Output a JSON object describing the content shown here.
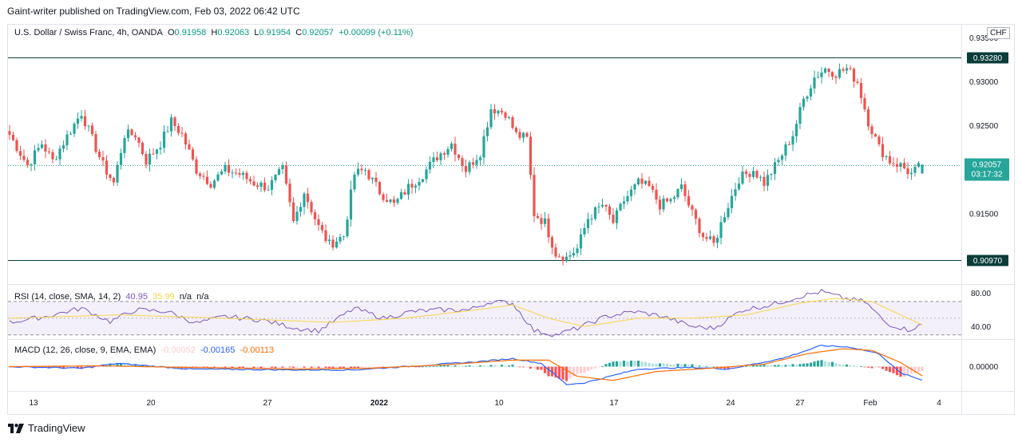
{
  "header": {
    "publisher": "Gaint-writer published on TradingView.com, Feb 03, 2022 06:42 UTC"
  },
  "legend": {
    "symbol": "U.S. Dollar / Swiss Franc, 4h, OANDA",
    "o_label": "O",
    "o": "0.91958",
    "h_label": "H",
    "h": "0.92063",
    "l_label": "L",
    "l": "0.91954",
    "c_label": "C",
    "c": "0.92057",
    "change": "+0.00099 (+0.11%)"
  },
  "currency_badge": "CHF",
  "brand": "TradingView",
  "colors": {
    "up": "#26a69a",
    "down": "#ef5350",
    "level_line": "#0b3d3a",
    "rsi": "#7e57c2",
    "rsi_ma": "#f9d54b",
    "macd": "#2962ff",
    "signal": "#ff6d00",
    "hist_up_strong": "#26a69a",
    "hist_up_weak": "#b2dfdb",
    "hist_dn_strong": "#ff5252",
    "hist_dn_weak": "#ffcdd2"
  },
  "chart_data": [
    {
      "type": "candlestick",
      "title": "U.S. Dollar / Swiss Franc, 4h, OANDA",
      "x_ticks": [
        "13",
        "20",
        "27",
        "2022",
        "10",
        "17",
        "24",
        "27",
        "Feb",
        "4"
      ],
      "y_ticks": [
        "0.93500",
        "0.93000",
        "0.92500",
        "0.91500"
      ],
      "ylim": [
        0.907,
        0.9365
      ],
      "levels": [
        {
          "value": 0.9328,
          "label": "0.93280"
        },
        {
          "value": 0.9097,
          "label": "0.90970"
        }
      ],
      "last_price": {
        "value": 0.92057,
        "label": "0.92057",
        "countdown": "03:17:32"
      },
      "waypoints": [
        [
          0,
          0.924
        ],
        [
          5,
          0.9205
        ],
        [
          9,
          0.923
        ],
        [
          12,
          0.921
        ],
        [
          17,
          0.9245
        ],
        [
          20,
          0.9265
        ],
        [
          23,
          0.9235
        ],
        [
          26,
          0.9205
        ],
        [
          29,
          0.9185
        ],
        [
          32,
          0.924
        ],
        [
          35,
          0.924
        ],
        [
          38,
          0.921
        ],
        [
          42,
          0.923
        ],
        [
          45,
          0.9255
        ],
        [
          48,
          0.924
        ],
        [
          52,
          0.92
        ],
        [
          56,
          0.9185
        ],
        [
          60,
          0.92
        ],
        [
          64,
          0.9195
        ],
        [
          68,
          0.9185
        ],
        [
          72,
          0.918
        ],
        [
          76,
          0.92
        ],
        [
          79,
          0.914
        ],
        [
          82,
          0.9175
        ],
        [
          86,
          0.9135
        ],
        [
          89,
          0.9115
        ],
        [
          93,
          0.9125
        ],
        [
          96,
          0.9195
        ],
        [
          99,
          0.92
        ],
        [
          103,
          0.9175
        ],
        [
          107,
          0.916
        ],
        [
          111,
          0.918
        ],
        [
          115,
          0.9195
        ],
        [
          119,
          0.9215
        ],
        [
          123,
          0.923
        ],
        [
          127,
          0.92
        ],
        [
          131,
          0.922
        ],
        [
          134,
          0.927
        ],
        [
          138,
          0.9265
        ],
        [
          141,
          0.924
        ],
        [
          144,
          0.9235
        ],
        [
          146,
          0.915
        ],
        [
          149,
          0.914
        ],
        [
          152,
          0.9105
        ],
        [
          155,
          0.91
        ],
        [
          158,
          0.911
        ],
        [
          161,
          0.9145
        ],
        [
          165,
          0.916
        ],
        [
          168,
          0.914
        ],
        [
          171,
          0.9165
        ],
        [
          175,
          0.9185
        ],
        [
          178,
          0.918
        ],
        [
          181,
          0.916
        ],
        [
          184,
          0.9165
        ],
        [
          187,
          0.918
        ],
        [
          190,
          0.915
        ],
        [
          193,
          0.9125
        ],
        [
          196,
          0.9115
        ],
        [
          199,
          0.915
        ],
        [
          203,
          0.919
        ],
        [
          207,
          0.92
        ],
        [
          210,
          0.9185
        ],
        [
          214,
          0.921
        ],
        [
          218,
          0.924
        ],
        [
          221,
          0.928
        ],
        [
          224,
          0.9305
        ],
        [
          227,
          0.9315
        ],
        [
          230,
          0.931
        ],
        [
          233,
          0.9315
        ],
        [
          236,
          0.93
        ],
        [
          239,
          0.9255
        ],
        [
          242,
          0.9225
        ],
        [
          245,
          0.921
        ],
        [
          248,
          0.9205
        ],
        [
          251,
          0.9195
        ],
        [
          254,
          0.9206
        ]
      ],
      "last_candle": {
        "o": 0.91958,
        "h": 0.92063,
        "l": 0.91954,
        "c": 0.92057
      }
    },
    {
      "type": "line",
      "title": "RSI (14, close, SMA, 14, 2)",
      "values_shown": [
        "40.95",
        "35.99",
        "n/a",
        "n/a"
      ],
      "y_ticks": [
        "80.00",
        "40.00"
      ],
      "ylim": [
        25,
        90
      ],
      "bands": [
        30,
        50,
        70
      ],
      "series": [
        {
          "name": "RSI",
          "waypoints": [
            [
              0,
              45
            ],
            [
              10,
              52
            ],
            [
              20,
              62
            ],
            [
              28,
              46
            ],
            [
              35,
              60
            ],
            [
              44,
              58
            ],
            [
              52,
              44
            ],
            [
              60,
              52
            ],
            [
              70,
              48
            ],
            [
              80,
              38
            ],
            [
              86,
              35
            ],
            [
              96,
              62
            ],
            [
              104,
              50
            ],
            [
              112,
              58
            ],
            [
              120,
              60
            ],
            [
              128,
              60
            ],
            [
              134,
              70
            ],
            [
              140,
              68
            ],
            [
              146,
              35
            ],
            [
              152,
              30
            ],
            [
              158,
              38
            ],
            [
              166,
              52
            ],
            [
              174,
              58
            ],
            [
              182,
              52
            ],
            [
              190,
              40
            ],
            [
              196,
              38
            ],
            [
              204,
              60
            ],
            [
              212,
              66
            ],
            [
              220,
              76
            ],
            [
              226,
              82
            ],
            [
              232,
              74
            ],
            [
              238,
              70
            ],
            [
              244,
              44
            ],
            [
              250,
              36
            ],
            [
              254,
              42
            ]
          ]
        },
        {
          "name": "RSI-based MA",
          "waypoints": [
            [
              0,
              50
            ],
            [
              30,
              54
            ],
            [
              60,
              50
            ],
            [
              90,
              45
            ],
            [
              110,
              50
            ],
            [
              130,
              60
            ],
            [
              140,
              66
            ],
            [
              150,
              50
            ],
            [
              160,
              40
            ],
            [
              175,
              50
            ],
            [
              190,
              50
            ],
            [
              205,
              54
            ],
            [
              220,
              68
            ],
            [
              230,
              74
            ],
            [
              240,
              70
            ],
            [
              254,
              42
            ]
          ]
        }
      ]
    },
    {
      "type": "bar+line",
      "title": "MACD (12, 26, close, 9, EMA, EMA)",
      "values_shown": [
        "-0.00052",
        "-0.00165",
        "-0.00113"
      ],
      "y_ticks": [
        "0.00000"
      ],
      "ylim": [
        -0.003,
        0.0033
      ],
      "series": [
        {
          "name": "MACD",
          "waypoints": [
            [
              0,
              0.0
            ],
            [
              20,
              -0.0002
            ],
            [
              30,
              0.0004
            ],
            [
              50,
              -0.0003
            ],
            [
              80,
              -0.0004
            ],
            [
              96,
              -0.0004
            ],
            [
              110,
              0.0
            ],
            [
              130,
              0.0006
            ],
            [
              140,
              0.001
            ],
            [
              148,
              0.0004
            ],
            [
              155,
              -0.0022
            ],
            [
              160,
              -0.002
            ],
            [
              175,
              -0.0003
            ],
            [
              190,
              -0.0001
            ],
            [
              200,
              -0.0003
            ],
            [
              215,
              0.001
            ],
            [
              226,
              0.0026
            ],
            [
              234,
              0.0024
            ],
            [
              242,
              0.0016
            ],
            [
              248,
              -0.0008
            ],
            [
              254,
              -0.00165
            ]
          ]
        },
        {
          "name": "Signal",
          "waypoints": [
            [
              0,
              0.0
            ],
            [
              25,
              0.0001
            ],
            [
              50,
              -0.0001
            ],
            [
              80,
              -0.0003
            ],
            [
              100,
              -0.0002
            ],
            [
              120,
              0.0002
            ],
            [
              140,
              0.0008
            ],
            [
              150,
              0.0008
            ],
            [
              158,
              -0.0012
            ],
            [
              168,
              -0.0017
            ],
            [
              180,
              -0.0006
            ],
            [
              195,
              -0.0002
            ],
            [
              210,
              0.0003
            ],
            [
              222,
              0.0016
            ],
            [
              232,
              0.0022
            ],
            [
              240,
              0.002
            ],
            [
              248,
              0.0005
            ],
            [
              254,
              -0.00113
            ]
          ]
        }
      ]
    }
  ]
}
